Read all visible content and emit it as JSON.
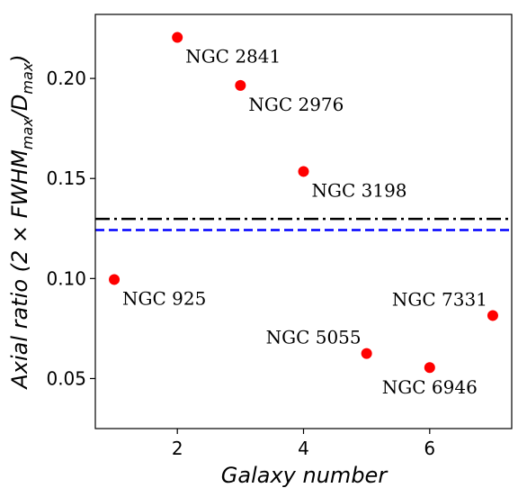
{
  "chart_data": {
    "type": "scatter",
    "xlabel": "Galaxy number",
    "ylabel": "Axial ratio (2 × FWHM",
    "ylabel_sub1": "max",
    "ylabel_mid": "/D",
    "ylabel_sub2": "max",
    "ylabel_end": ")",
    "xlim": [
      0.7,
      7.3
    ],
    "ylim": [
      0.025,
      0.232
    ],
    "xticks": [
      2,
      4,
      6
    ],
    "yticks": [
      0.05,
      0.1,
      0.15,
      0.2
    ],
    "ytick_labels": [
      "0.05",
      "0.10",
      "0.15",
      "0.20"
    ],
    "grid": false,
    "point_color": "#ff0000",
    "points": [
      {
        "x": 1,
        "y": 0.0995,
        "label": "NGC 925",
        "label_pos": "below-right"
      },
      {
        "x": 2,
        "y": 0.2205,
        "label": "NGC 2841",
        "label_pos": "below-right"
      },
      {
        "x": 3,
        "y": 0.1965,
        "label": "NGC 2976",
        "label_pos": "below-right"
      },
      {
        "x": 4,
        "y": 0.1535,
        "label": "NGC 3198",
        "label_pos": "below-right"
      },
      {
        "x": 5,
        "y": 0.0625,
        "label": "NGC 5055",
        "label_pos": "above-left"
      },
      {
        "x": 6,
        "y": 0.0555,
        "label": "NGC 6946",
        "label_pos": "below-center"
      },
      {
        "x": 7,
        "y": 0.0815,
        "label": "NGC 7331",
        "label_pos": "above-left"
      }
    ],
    "hlines": [
      {
        "y": 0.1298,
        "color": "#000000",
        "style": "dashdot"
      },
      {
        "y": 0.1242,
        "color": "#0000ff",
        "style": "dashed"
      }
    ]
  }
}
